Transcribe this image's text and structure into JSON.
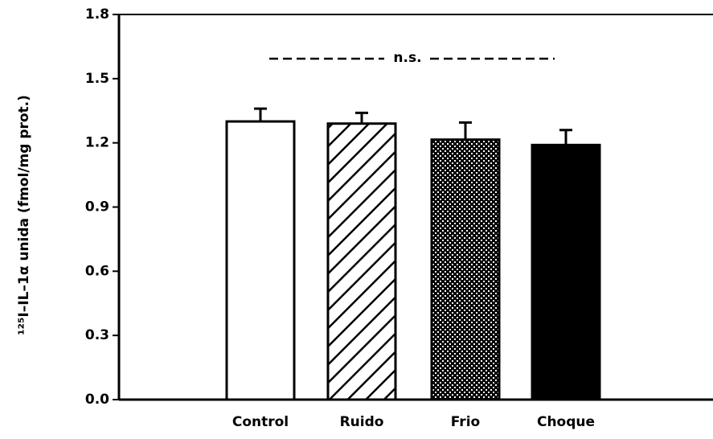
{
  "chart_data": {
    "type": "bar",
    "y_label": "¹²⁵I–IL–1α unida (fmol/mg prot.)",
    "annotation": "n.s.",
    "categories": [
      "Control",
      "Ruido",
      "Frio",
      "Choque"
    ],
    "values": [
      1.3,
      1.29,
      1.215,
      1.19
    ],
    "errors": [
      0.06,
      0.05,
      0.08,
      0.07
    ],
    "patterns": [
      "none",
      "hatch",
      "cross",
      "solid"
    ],
    "color": "#000000",
    "ylim": [
      0,
      1.8
    ],
    "yticks": [
      {
        "value": 0,
        "label": "0.0"
      },
      0.3,
      0.6,
      0.9,
      1.2,
      1.5,
      1.8
    ]
  }
}
